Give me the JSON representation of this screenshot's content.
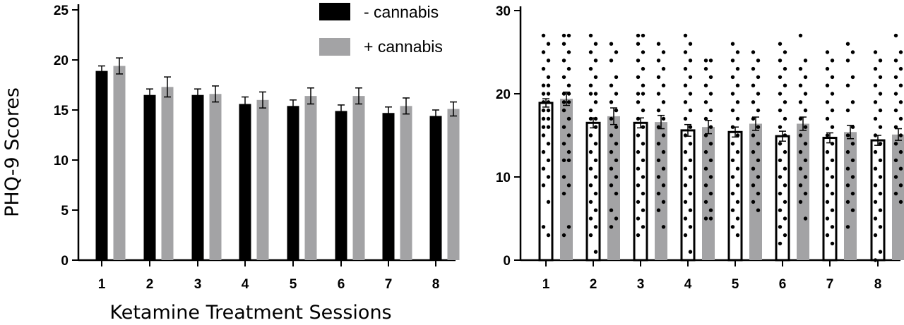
{
  "colors": {
    "without": "#000000",
    "with": "#a3a3a5",
    "axis": "#000000",
    "dots": "#000000"
  },
  "chart_data": [
    {
      "type": "bar",
      "categories": [
        "1",
        "2",
        "3",
        "4",
        "5",
        "6",
        "7",
        "8"
      ],
      "series": [
        {
          "name": "- cannabis",
          "values": [
            18.9,
            16.5,
            16.5,
            15.6,
            15.4,
            14.9,
            14.7,
            14.4
          ],
          "errors": [
            0.5,
            0.6,
            0.6,
            0.7,
            0.6,
            0.6,
            0.6,
            0.6
          ]
        },
        {
          "name": "+ cannabis",
          "values": [
            19.4,
            17.3,
            16.6,
            16.0,
            16.4,
            16.4,
            15.4,
            15.1
          ],
          "errors": [
            0.8,
            1.0,
            0.8,
            0.8,
            0.8,
            0.8,
            0.8,
            0.7
          ]
        }
      ],
      "xlabel": "Ketamine Treatment Sessions",
      "ylabel": "PHQ-9 Scores",
      "ylim": [
        0,
        25
      ],
      "yticks": [
        0,
        5,
        10,
        15,
        20,
        25
      ],
      "legend_position": "top-right",
      "grid": false
    },
    {
      "type": "bar",
      "categories": [
        "1",
        "2",
        "3",
        "4",
        "5",
        "6",
        "7",
        "8"
      ],
      "series": [
        {
          "name": "- cannabis",
          "values": [
            18.9,
            16.5,
            16.5,
            15.6,
            15.4,
            14.9,
            14.7,
            14.4
          ],
          "errors": [
            0.5,
            0.6,
            0.6,
            0.7,
            0.6,
            0.6,
            0.6,
            0.6
          ]
        },
        {
          "name": "+ cannabis",
          "values": [
            19.4,
            17.3,
            16.6,
            16.0,
            16.4,
            16.4,
            15.4,
            15.1
          ],
          "errors": [
            0.8,
            1.0,
            0.8,
            0.8,
            0.8,
            0.8,
            0.8,
            0.7
          ]
        }
      ],
      "ylim": [
        0,
        30
      ],
      "yticks": [
        0,
        10,
        20,
        30
      ],
      "grid": false,
      "note": "individual participant scores overlaid as dots on each bar",
      "points": {
        "without": [
          [
            27,
            26,
            25,
            24,
            23,
            22,
            21,
            21,
            20,
            20,
            19,
            19,
            18,
            18,
            17,
            17,
            16,
            16,
            15,
            14,
            13,
            12,
            11,
            10,
            9,
            7,
            4,
            3
          ],
          [
            27,
            26,
            25,
            24,
            23,
            22,
            21,
            20,
            20,
            19,
            18,
            17,
            17,
            16,
            15,
            14,
            13,
            12,
            11,
            10,
            9,
            8,
            7,
            6,
            5,
            4,
            3,
            1
          ],
          [
            27,
            27,
            26,
            25,
            24,
            23,
            22,
            21,
            20,
            20,
            19,
            18,
            17,
            16,
            15,
            14,
            13,
            12,
            11,
            10,
            9,
            8,
            7,
            6,
            5,
            4,
            3
          ],
          [
            27,
            26,
            25,
            24,
            23,
            22,
            21,
            20,
            19,
            18,
            17,
            16,
            15,
            14,
            13,
            12,
            11,
            10,
            9,
            8,
            7,
            6,
            5,
            4,
            3,
            1
          ],
          [
            26,
            25,
            24,
            23,
            22,
            21,
            20,
            19,
            18,
            17,
            16,
            15,
            14,
            13,
            12,
            11,
            10,
            9,
            8,
            7,
            6,
            5,
            4,
            3
          ],
          [
            26,
            25,
            24,
            23,
            22,
            21,
            20,
            19,
            18,
            17,
            16,
            15,
            14,
            13,
            12,
            11,
            10,
            9,
            8,
            7,
            6,
            5,
            4,
            3,
            2
          ],
          [
            25,
            24,
            23,
            22,
            21,
            20,
            19,
            18,
            17,
            16,
            15,
            14,
            13,
            12,
            11,
            10,
            9,
            8,
            7,
            6,
            5,
            4,
            3,
            2
          ],
          [
            25,
            24,
            23,
            22,
            21,
            20,
            19,
            18,
            17,
            16,
            15,
            14,
            13,
            12,
            11,
            10,
            9,
            8,
            7,
            6,
            5,
            4,
            3,
            1,
            0
          ]
        ],
        "with": [
          [
            27,
            27,
            26,
            25,
            24,
            23,
            22,
            21,
            20,
            20,
            19,
            19,
            18,
            17,
            16,
            15,
            14,
            13,
            12,
            12,
            10,
            9,
            8,
            4,
            3
          ],
          [
            26,
            25,
            24,
            22,
            21,
            20,
            19,
            18,
            17,
            16,
            15,
            14,
            13,
            12,
            11,
            10,
            9,
            8,
            6,
            5,
            4
          ],
          [
            26,
            25,
            24,
            23,
            22,
            21,
            20,
            19,
            18,
            17,
            16,
            15,
            14,
            13,
            12,
            11,
            10,
            9,
            8,
            7,
            6,
            4
          ],
          [
            24,
            24,
            23,
            22,
            21,
            20,
            19,
            18,
            17,
            16,
            15,
            14,
            13,
            12,
            11,
            10,
            9,
            8,
            7,
            6,
            5,
            5
          ],
          [
            25,
            24,
            23,
            22,
            21,
            20,
            19,
            18,
            17,
            16,
            15,
            14,
            13,
            12,
            11,
            10,
            9,
            8,
            7,
            6
          ],
          [
            27,
            24,
            23,
            22,
            21,
            20,
            19,
            18,
            17,
            16,
            15,
            14,
            13,
            12,
            11,
            10,
            9,
            8,
            7,
            5
          ],
          [
            26,
            25,
            24,
            22,
            21,
            19,
            18,
            16,
            15,
            14,
            13,
            12,
            11,
            10,
            9,
            8,
            7,
            6,
            4
          ],
          [
            27,
            25,
            24,
            23,
            22,
            21,
            20,
            19,
            18,
            17,
            16,
            15,
            14,
            13,
            12,
            11,
            10,
            9,
            8,
            7
          ]
        ]
      }
    }
  ]
}
